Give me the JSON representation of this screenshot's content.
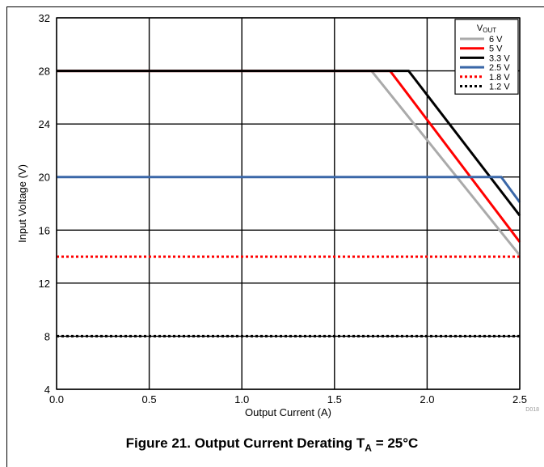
{
  "chart_data": {
    "type": "line",
    "xlabel": "Output Current (A)",
    "ylabel": "Input Voltage (V)",
    "xlim": [
      0,
      2.5
    ],
    "ylim": [
      4,
      32
    ],
    "x_ticks": [
      "0.0",
      "0.5",
      "1.0",
      "1.5",
      "2.0",
      "2.5"
    ],
    "y_ticks": [
      "4",
      "8",
      "12",
      "16",
      "20",
      "24",
      "28",
      "32"
    ],
    "grid": true,
    "legend_placement": "top-right",
    "legend_title_main": "V",
    "legend_title_sub": "OUT",
    "series": [
      {
        "name": "6 V",
        "color": "#aaaaaa",
        "dash": "solid",
        "x": [
          0,
          1.7,
          2.5
        ],
        "y": [
          28,
          28,
          14.1
        ]
      },
      {
        "name": "5 V",
        "color": "#ff0000",
        "dash": "solid",
        "x": [
          0,
          1.8,
          2.5
        ],
        "y": [
          28,
          28,
          15.1
        ]
      },
      {
        "name": "3.3 V",
        "color": "#000000",
        "dash": "solid",
        "x": [
          0,
          1.9,
          2.5
        ],
        "y": [
          28,
          28,
          17.1
        ]
      },
      {
        "name": "2.5 V",
        "color": "#3a67a8",
        "dash": "solid",
        "x": [
          0,
          2.4,
          2.5
        ],
        "y": [
          20,
          20,
          18.1
        ]
      },
      {
        "name": "1.8 V",
        "color": "#ff0000",
        "dash": "dotted",
        "x": [
          0,
          2.5
        ],
        "y": [
          14,
          14
        ]
      },
      {
        "name": "1.2 V",
        "color": "#000000",
        "dash": "dotted",
        "x": [
          0,
          2.5
        ],
        "y": [
          8,
          8
        ]
      }
    ],
    "corner_tag": "D018"
  },
  "caption": {
    "prefix": "Figure 21. Output Current Derating T",
    "sub": "A",
    "suffix": " = 25°C"
  }
}
